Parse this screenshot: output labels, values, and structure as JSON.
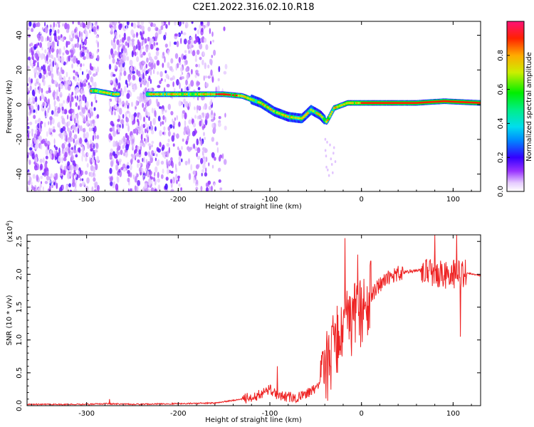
{
  "title": "C2E1.2022.316.02.10.R18",
  "colors": {
    "snr_line": "#ee2222",
    "frame": "#000000",
    "background": "#ffffff"
  },
  "chart_data": [
    {
      "type": "heatmap",
      "name": "spectrogram",
      "xlabel": "Height of straight line (km)",
      "ylabel": "Frequency (Hz)",
      "xlim": [
        -365,
        130
      ],
      "ylim": [
        -50,
        48
      ],
      "xticks": [
        -300,
        -200,
        -100,
        0,
        100
      ],
      "yticks": [
        -40,
        -20,
        0,
        20,
        40
      ],
      "colorbar": {
        "label": "Normalized spectral amplitude",
        "range": [
          0.0,
          1.0
        ],
        "ticks": [
          0.0,
          0.2,
          0.4,
          0.6,
          0.8
        ]
      },
      "ridge": [
        {
          "x": -290,
          "y": 8
        },
        {
          "x": -270,
          "y": 6
        },
        {
          "x": -220,
          "y": 6
        },
        {
          "x": -180,
          "y": 6
        },
        {
          "x": -150,
          "y": 6
        },
        {
          "x": -130,
          "y": 5
        },
        {
          "x": -110,
          "y": 1
        },
        {
          "x": -95,
          "y": -4
        },
        {
          "x": -80,
          "y": -7
        },
        {
          "x": -65,
          "y": -8
        },
        {
          "x": -55,
          "y": -3
        },
        {
          "x": -45,
          "y": -6
        },
        {
          "x": -38,
          "y": -10
        },
        {
          "x": -30,
          "y": -2
        },
        {
          "x": -15,
          "y": 1
        },
        {
          "x": 0,
          "y": 1
        },
        {
          "x": 30,
          "y": 1
        },
        {
          "x": 60,
          "y": 1
        },
        {
          "x": 90,
          "y": 2
        },
        {
          "x": 130,
          "y": 1
        }
      ]
    },
    {
      "type": "line",
      "name": "snr",
      "xlabel": "Height of straight line (km)",
      "ylabel": "SNR (10 * v/v)",
      "scale_label": "(x10",
      "scale_exp": "4",
      "scale_close": ")",
      "xlim": [
        -365,
        130
      ],
      "ylim": [
        0,
        2.6
      ],
      "xticks": [
        -300,
        -200,
        -100,
        0,
        100
      ],
      "yticks": [
        0.0,
        0.5,
        1.0,
        1.5,
        2.0,
        2.5
      ],
      "ytick_labels": [
        "0.0",
        "0.5",
        "1.0",
        "1.5",
        "2.0",
        "2.5"
      ],
      "trend": [
        {
          "x": -365,
          "y": 0.02
        },
        {
          "x": -300,
          "y": 0.02
        },
        {
          "x": -280,
          "y": 0.03
        },
        {
          "x": -250,
          "y": 0.02
        },
        {
          "x": -200,
          "y": 0.03
        },
        {
          "x": -160,
          "y": 0.04
        },
        {
          "x": -130,
          "y": 0.1
        },
        {
          "x": -115,
          "y": 0.15
        },
        {
          "x": -100,
          "y": 0.25
        },
        {
          "x": -90,
          "y": 0.15
        },
        {
          "x": -70,
          "y": 0.12
        },
        {
          "x": -50,
          "y": 0.25
        },
        {
          "x": -40,
          "y": 0.5
        },
        {
          "x": -30,
          "y": 0.9
        },
        {
          "x": -20,
          "y": 1.2
        },
        {
          "x": -10,
          "y": 1.3
        },
        {
          "x": 0,
          "y": 1.45
        },
        {
          "x": 10,
          "y": 1.65
        },
        {
          "x": 20,
          "y": 1.85
        },
        {
          "x": 30,
          "y": 1.95
        },
        {
          "x": 40,
          "y": 2.02
        },
        {
          "x": 55,
          "y": 2.05
        },
        {
          "x": 70,
          "y": 2.05
        },
        {
          "x": 85,
          "y": 2.0
        },
        {
          "x": 100,
          "y": 2.0
        },
        {
          "x": 115,
          "y": 2.02
        },
        {
          "x": 130,
          "y": 1.98
        }
      ],
      "peaks": [
        {
          "x": -275,
          "y": 0.1
        },
        {
          "x": -92,
          "y": 0.6
        },
        {
          "x": -32,
          "y": 1.2
        },
        {
          "x": -22,
          "y": 1.5
        },
        {
          "x": -18,
          "y": 2.55
        },
        {
          "x": -4,
          "y": 2.3
        },
        {
          "x": 10,
          "y": 2.2
        },
        {
          "x": 80,
          "y": 2.6
        },
        {
          "x": 104,
          "y": 2.6
        },
        {
          "x": 108,
          "y": 1.05
        }
      ]
    }
  ]
}
